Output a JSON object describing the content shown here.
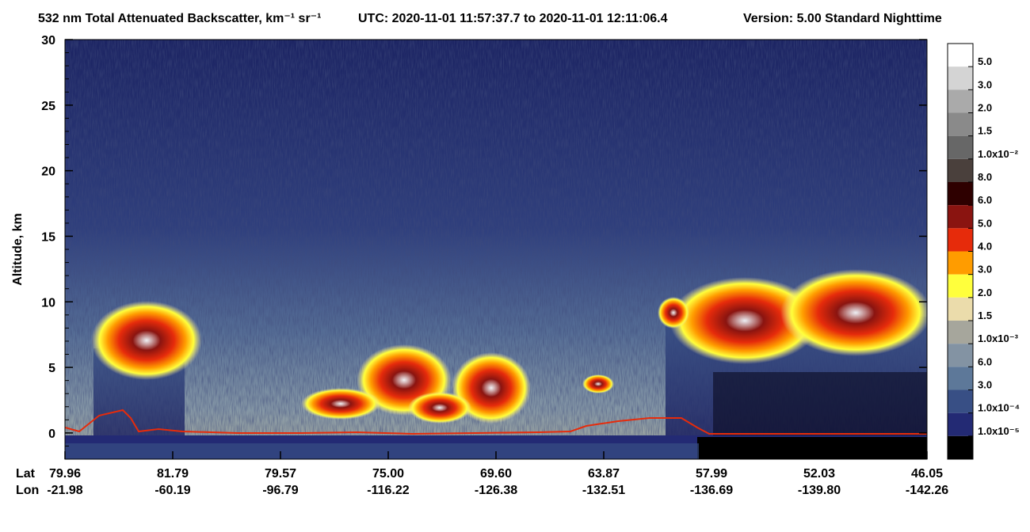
{
  "chart_data": {
    "type": "heatmap",
    "title": "532 nm Total Attenuated Backscatter, km⁻¹ sr⁻¹",
    "subtitle": "UTC:  2020-11-01 11:57:37.7  to  2020-11-01 12:11:06.4",
    "version": "Version: 5.00  Standard  Nighttime",
    "ylabel": "Altitude, km",
    "ylim": [
      -2,
      30
    ],
    "yticks": [
      0,
      5,
      10,
      15,
      20,
      25,
      30
    ],
    "x_row_labels": [
      "Lat",
      "Lon"
    ],
    "lat": [
      "79.96",
      "81.79",
      "79.57",
      "75.00",
      "69.60",
      "63.87",
      "57.99",
      "52.03",
      "46.05"
    ],
    "lon": [
      "-21.98",
      "-60.19",
      "-96.79",
      "-116.22",
      "-126.38",
      "-132.51",
      "-136.69",
      "-139.80",
      "-142.26"
    ],
    "colorbar": {
      "colors": [
        "#ffffff",
        "#d4d4d4",
        "#aaaaaa",
        "#8a8a8a",
        "#676767",
        "#4a403c",
        "#2e0000",
        "#8a1410",
        "#e62b0b",
        "#ff9c00",
        "#ffff3c",
        "#ebdcab",
        "#a6a69c",
        "#8393a3",
        "#5d7899",
        "#384f85",
        "#232a74",
        "#000000"
      ],
      "labels": [
        "5.0",
        "3.0",
        "2.0",
        "1.5",
        "1.0x10⁻²",
        "8.0",
        "6.0",
        "5.0",
        "4.0",
        "3.0",
        "2.0",
        "1.5",
        "1.0x10⁻³",
        "6.0",
        "3.0",
        "1.0x10⁻⁴",
        "1.0x10⁻⁵"
      ]
    }
  }
}
